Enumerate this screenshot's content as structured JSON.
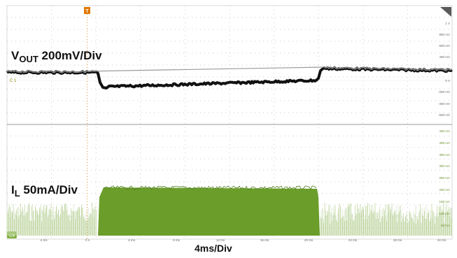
{
  "labels": {
    "vout_main": "V",
    "vout_sub": "OUT",
    "vout_scale": "200mV/Div",
    "il_main": "I",
    "il_sub": "L",
    "il_scale": "50mA/Div",
    "time_scale": "4ms/Div"
  },
  "trigger_marker": "T",
  "channel_markers": {
    "c1": "C 1",
    "c4": "C4"
  },
  "upper_axis_labels": [
    "1 V",
    "800 mV",
    "600 mV",
    "400 mV",
    "200 mV",
    "0 V",
    "-200 mV",
    "-400 mV",
    "-600 mV"
  ],
  "lower_axis_labels": [
    "450 mA",
    "400 mA",
    "350 mA",
    "300 mA",
    "250 mA",
    "200 mA",
    "150 mA",
    "100 mA",
    "50 mA"
  ],
  "time_axis_labels": [
    "-4 ms",
    "0 s",
    "4 ms",
    "8 ms",
    "12 ms",
    "16 ms",
    "20 ms",
    "24 ms",
    "28 ms",
    "32 ms"
  ],
  "colors": {
    "vout_trace": "#111111",
    "il_trace": "#6b9d2b",
    "il_light": "#c9dcae",
    "grid_dot": "#b8b8b8",
    "trigger": "#e07800",
    "c4_badge": "#7fb03c"
  }
}
